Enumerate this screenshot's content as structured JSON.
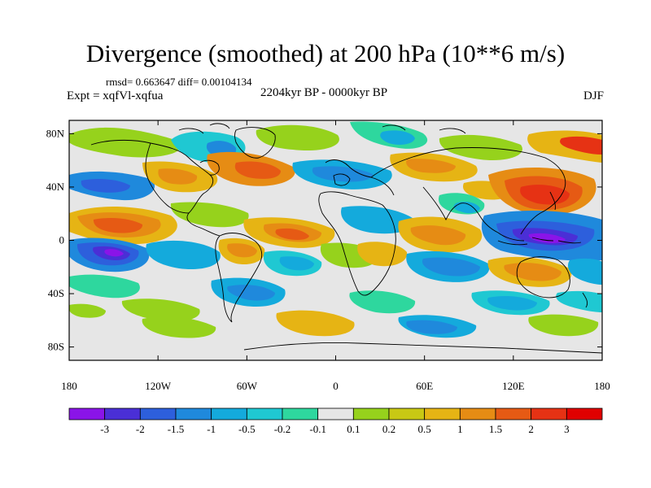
{
  "title": "Divergence (smoothed) at 200 hPa (10**6 m/s)",
  "stats": "rmsd= 0.663647 diff= 0.00104134",
  "experiment": "Expt = xqfVl-xqfua",
  "period": "2204kyr BP - 0000kyr BP",
  "season": "DJF",
  "map": {
    "projection": "cylindrical equidistant",
    "lat_ticks": [
      "80N",
      "40N",
      "0",
      "40S",
      "80S"
    ],
    "lon_ticks": [
      "180",
      "120W",
      "60W",
      "0",
      "60E",
      "120E",
      "180"
    ]
  },
  "colorbar": {
    "labels": [
      "-3",
      "-2",
      "-1.5",
      "-1",
      "-0.5",
      "-0.2",
      "-0.1",
      "0.1",
      "0.2",
      "0.5",
      "1",
      "1.5",
      "2",
      "3"
    ],
    "colors": [
      "#8a14e8",
      "#4a2fd6",
      "#2d5fdc",
      "#1f89dc",
      "#14aadc",
      "#1fc8d2",
      "#2ed79e",
      "#e6e6e6",
      "#96d21c",
      "#c8c814",
      "#e6b414",
      "#e68c14",
      "#e65a14",
      "#e63214",
      "#e00000"
    ]
  }
}
